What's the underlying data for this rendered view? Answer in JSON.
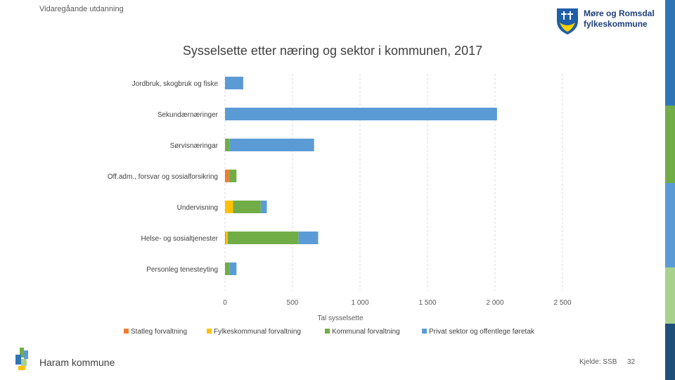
{
  "header": {
    "label": "Vidaregåande utdanning"
  },
  "logo": {
    "line1": "Møre og Romsdal",
    "line2": "fylkeskommune"
  },
  "footer": {
    "municipality": "Haram kommune",
    "source": "Kjelde: SSB",
    "page": "32"
  },
  "colors": {
    "statleg": "#ED7D31",
    "fylkeskommunal": "#FFC000",
    "kommunal": "#70AD47",
    "privat": "#5B9BD5",
    "sidebar": [
      "#2E75B6",
      "#70AD47",
      "#5B9BD5",
      "#A9D18E",
      "#1F4E79"
    ]
  },
  "chart_data": {
    "type": "bar",
    "orientation": "horizontal",
    "stacked": true,
    "title": "Sysselsette etter næring og sektor i kommunen, 2017",
    "xlabel": "Tal sysselsette",
    "ylabel": "",
    "xlim": [
      0,
      2500
    ],
    "xticks": [
      0,
      500,
      1000,
      1500,
      2000,
      2500
    ],
    "xtick_labels": [
      "0",
      "500",
      "1 000",
      "1 500",
      "2 000",
      "2 500"
    ],
    "grid": true,
    "legend_position": "bottom",
    "categories": [
      "Jordbruk, skogbruk og fiske",
      "Sekundærnæringer",
      "Sørvisnæringar",
      "Off.adm., forsvar og sosialforsikring",
      "Undervisning",
      "Helse- og sosialtjenester",
      "Personleg tenesteyting"
    ],
    "series": [
      {
        "name": "Statleg forvaltning",
        "values": [
          0,
          0,
          5,
          30,
          0,
          5,
          0
        ]
      },
      {
        "name": "Fylkeskommunal forvaltning",
        "values": [
          0,
          0,
          0,
          0,
          60,
          15,
          0
        ]
      },
      {
        "name": "Kommunal forvaltning",
        "values": [
          0,
          5,
          30,
          55,
          205,
          525,
          35
        ]
      },
      {
        "name": "Privat sektor og offentlege føretak",
        "values": [
          135,
          2010,
          625,
          0,
          45,
          145,
          50
        ]
      }
    ]
  }
}
